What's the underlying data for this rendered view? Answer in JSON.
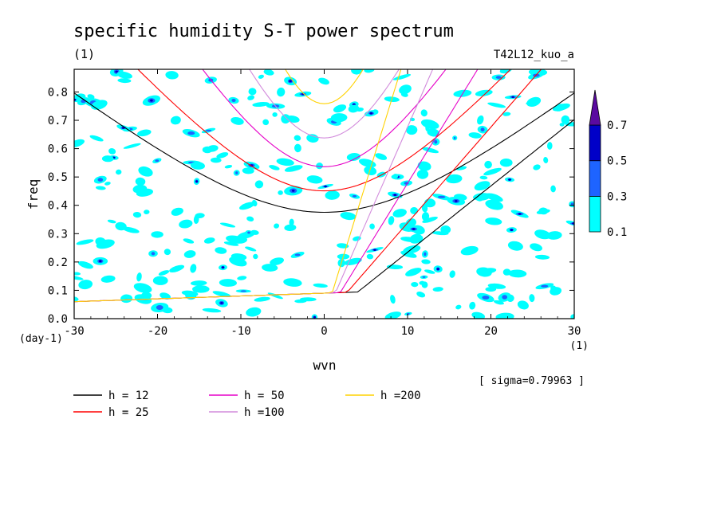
{
  "chart_data": {
    "type": "heatmap",
    "title": "specific humidity S-T power spectrum",
    "subtitle": "(1)",
    "run_label": "T42L12_kuo_a",
    "xlabel": "wvn",
    "x_unit": "(1)",
    "ylabel": "freq",
    "y_unit": "(day-1)",
    "xlim": [
      -30,
      30
    ],
    "ylim": [
      0,
      0.88
    ],
    "x_ticks": [
      "-30",
      "-20",
      "-10",
      "0",
      "10",
      "20",
      "30"
    ],
    "y_ticks": [
      "0.0",
      "0.1",
      "0.2",
      "0.3",
      "0.4",
      "0.5",
      "0.6",
      "0.7",
      "0.8"
    ],
    "sigma_label": "[ sigma=0.79963 ]",
    "colorbar": {
      "levels": [
        "0.1",
        "0.3",
        "0.5",
        "0.7"
      ],
      "colors": [
        "#00ffff",
        "#1e64ff",
        "#0000c8",
        "#5a0aa0"
      ]
    },
    "curves": [
      {
        "name": "h = 12",
        "color": "#000000"
      },
      {
        "name": "h = 25",
        "color": "#ff0000"
      },
      {
        "name": "h = 50",
        "color": "#e600c8"
      },
      {
        "name": "h =100",
        "color": "#d28cdc"
      },
      {
        "name": "h =200",
        "color": "#ffd200"
      }
    ]
  }
}
